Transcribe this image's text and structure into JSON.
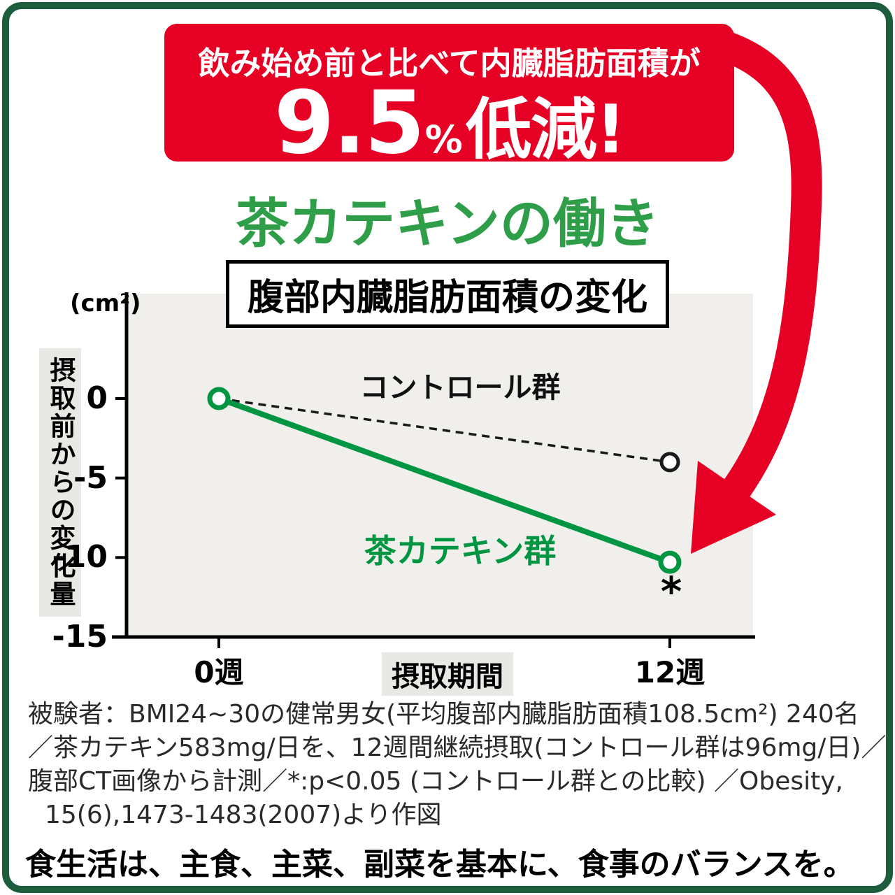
{
  "colors": {
    "red": "#e60023",
    "green": "#009540",
    "green-title": "#2e9e49",
    "frame-green": "#1c5e3c",
    "plot-bg": "#f0efec"
  },
  "banner": {
    "line1": "飲み始め前と比べて内臓脂肪面積が",
    "value": "9.5",
    "unit": "%",
    "suffix": "低減!"
  },
  "title": "茶カテキンの働き",
  "subtitle": "腹部内臓脂肪面積の変化",
  "chart_data": {
    "type": "line",
    "x": [
      "0週",
      "12週"
    ],
    "series": [
      {
        "name": "コントロール群",
        "values": [
          0,
          -4
        ],
        "style": "dashed",
        "color": "#1a1a1a"
      },
      {
        "name": "茶カテキン群",
        "values": [
          0,
          -10.3
        ],
        "style": "solid",
        "color": "#009540",
        "annotation": "*"
      }
    ],
    "yunit": "(cm²)",
    "ylabel": "摂取前からの変化量",
    "xlabel": "摂取期間",
    "yticks": [
      0,
      -5,
      -10,
      -15
    ],
    "ylim": [
      -15,
      5
    ],
    "grid": false,
    "legend_position": "inline-labels"
  },
  "footnote": {
    "lines": [
      "被験者：BMI24~30の健常男女(平均腹部内臓脂肪面積108.5cm²) 240名",
      "／茶カテキン583mg/日を、12週間継続摂取(コントロール群は96mg/日)／",
      "腹部CT画像から計測／*:p<0.05 (コントロール群との比較) ／Obesity,",
      "15(6),1473-1483(2007)より作図"
    ]
  },
  "bottom_note": "食生活は、主食、主菜、副菜を基本に、食事のバランスを。"
}
